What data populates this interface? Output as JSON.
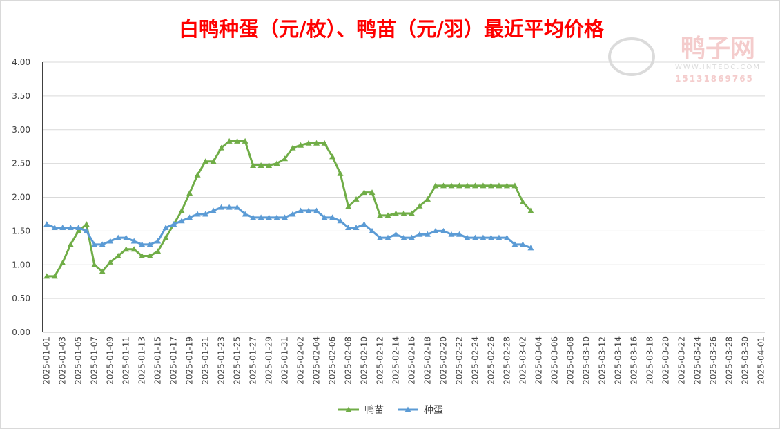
{
  "chart_data": {
    "type": "line",
    "title": "白鸭种蛋（元/枚）、鸭苗（元/羽）最近平均价格",
    "watermark": {
      "name": "鸭子网",
      "site": "WWW.INTEDC.COM",
      "phone": "15131869765"
    },
    "categories": [
      "2025-01-01",
      null,
      "2025-01-03",
      null,
      "2025-01-05",
      null,
      "2025-01-07",
      null,
      "2025-01-09",
      null,
      "2025-01-11",
      null,
      "2025-01-13",
      null,
      "2025-01-15",
      null,
      "2025-01-17",
      null,
      "2025-01-19",
      null,
      "2025-01-21",
      null,
      "2025-01-23",
      null,
      "2025-01-25",
      null,
      "2025-01-27",
      null,
      "2025-01-29",
      null,
      "2025-01-31",
      null,
      "2025-02-02",
      null,
      "2025-02-04",
      null,
      "2025-02-06",
      null,
      "2025-02-08",
      null,
      "2025-02-10",
      null,
      "2025-02-12",
      null,
      "2025-02-14",
      null,
      "2025-02-16",
      null,
      "2025-02-18",
      null,
      "2025-02-20",
      null,
      "2025-02-22",
      null,
      "2025-02-24",
      null,
      "2025-02-26",
      null,
      "2025-02-28",
      null,
      "2025-03-02",
      null,
      "2025-03-04",
      null,
      "2025-03-06",
      null,
      "2025-03-08",
      null,
      "2025-03-10",
      null,
      "2025-03-12",
      null,
      "2025-03-14",
      null,
      "2025-03-16",
      null,
      "2025-03-18",
      null,
      "2025-03-20",
      null,
      "2025-03-22",
      null,
      "2025-03-24",
      null,
      "2025-03-26",
      null,
      "2025-03-28",
      null,
      "2025-03-30",
      null,
      "2025-04-01"
    ],
    "series": [
      {
        "name": "鸭苗",
        "color": "#70ad47",
        "values": [
          0.83,
          0.83,
          1.03,
          1.3,
          1.5,
          1.6,
          1.0,
          0.9,
          1.04,
          1.13,
          1.23,
          1.23,
          1.13,
          1.13,
          1.2,
          1.4,
          1.6,
          1.8,
          2.06,
          2.33,
          2.53,
          2.53,
          2.73,
          2.83,
          2.83,
          2.83,
          2.47,
          2.47,
          2.47,
          2.5,
          2.57,
          2.73,
          2.77,
          2.8,
          2.8,
          2.8,
          2.6,
          2.35,
          1.86,
          1.97,
          2.07,
          2.07,
          1.73,
          1.73,
          1.76,
          1.76,
          1.76,
          1.87,
          1.97,
          2.17,
          2.17,
          2.17,
          2.17,
          2.17,
          2.17,
          2.17,
          2.17,
          2.17,
          2.17,
          2.17,
          1.93,
          1.8,
          null,
          null,
          null,
          null,
          null,
          null,
          null,
          null,
          null,
          null,
          null,
          null,
          null,
          null,
          null,
          null,
          null,
          null,
          null,
          null,
          null,
          null,
          null,
          null,
          null,
          null,
          null,
          null,
          null
        ]
      },
      {
        "name": "种蛋",
        "color": "#5b9bd5",
        "values": [
          1.6,
          1.55,
          1.55,
          1.55,
          1.55,
          1.5,
          1.3,
          1.3,
          1.35,
          1.4,
          1.4,
          1.35,
          1.3,
          1.3,
          1.35,
          1.55,
          1.6,
          1.65,
          1.7,
          1.75,
          1.75,
          1.8,
          1.85,
          1.85,
          1.85,
          1.75,
          1.7,
          1.7,
          1.7,
          1.7,
          1.7,
          1.75,
          1.8,
          1.8,
          1.8,
          1.7,
          1.7,
          1.65,
          1.55,
          1.55,
          1.6,
          1.5,
          1.4,
          1.4,
          1.45,
          1.4,
          1.4,
          1.45,
          1.45,
          1.5,
          1.5,
          1.45,
          1.45,
          1.4,
          1.4,
          1.4,
          1.4,
          1.4,
          1.4,
          1.3,
          1.3,
          1.25,
          null,
          null,
          null,
          null,
          null,
          null,
          null,
          null,
          null,
          null,
          null,
          null,
          null,
          null,
          null,
          null,
          null,
          null,
          null,
          null,
          null,
          null,
          null,
          null,
          null,
          null,
          null,
          null,
          null
        ]
      }
    ],
    "ylim": [
      0,
      4
    ],
    "yticks": [
      {
        "value": 0,
        "label": "0.00"
      },
      {
        "value": 0.5,
        "label": "0.50"
      },
      {
        "value": 1,
        "label": "1.00"
      },
      {
        "value": 1.5,
        "label": "1.50"
      },
      {
        "value": 2,
        "label": "2.00"
      },
      {
        "value": 2.5,
        "label": "2.50"
      },
      {
        "value": 3,
        "label": "3.00"
      },
      {
        "value": 3.5,
        "label": "3.50"
      },
      {
        "value": 4,
        "label": "4.00"
      }
    ],
    "grid": true,
    "legend": "bottom"
  }
}
